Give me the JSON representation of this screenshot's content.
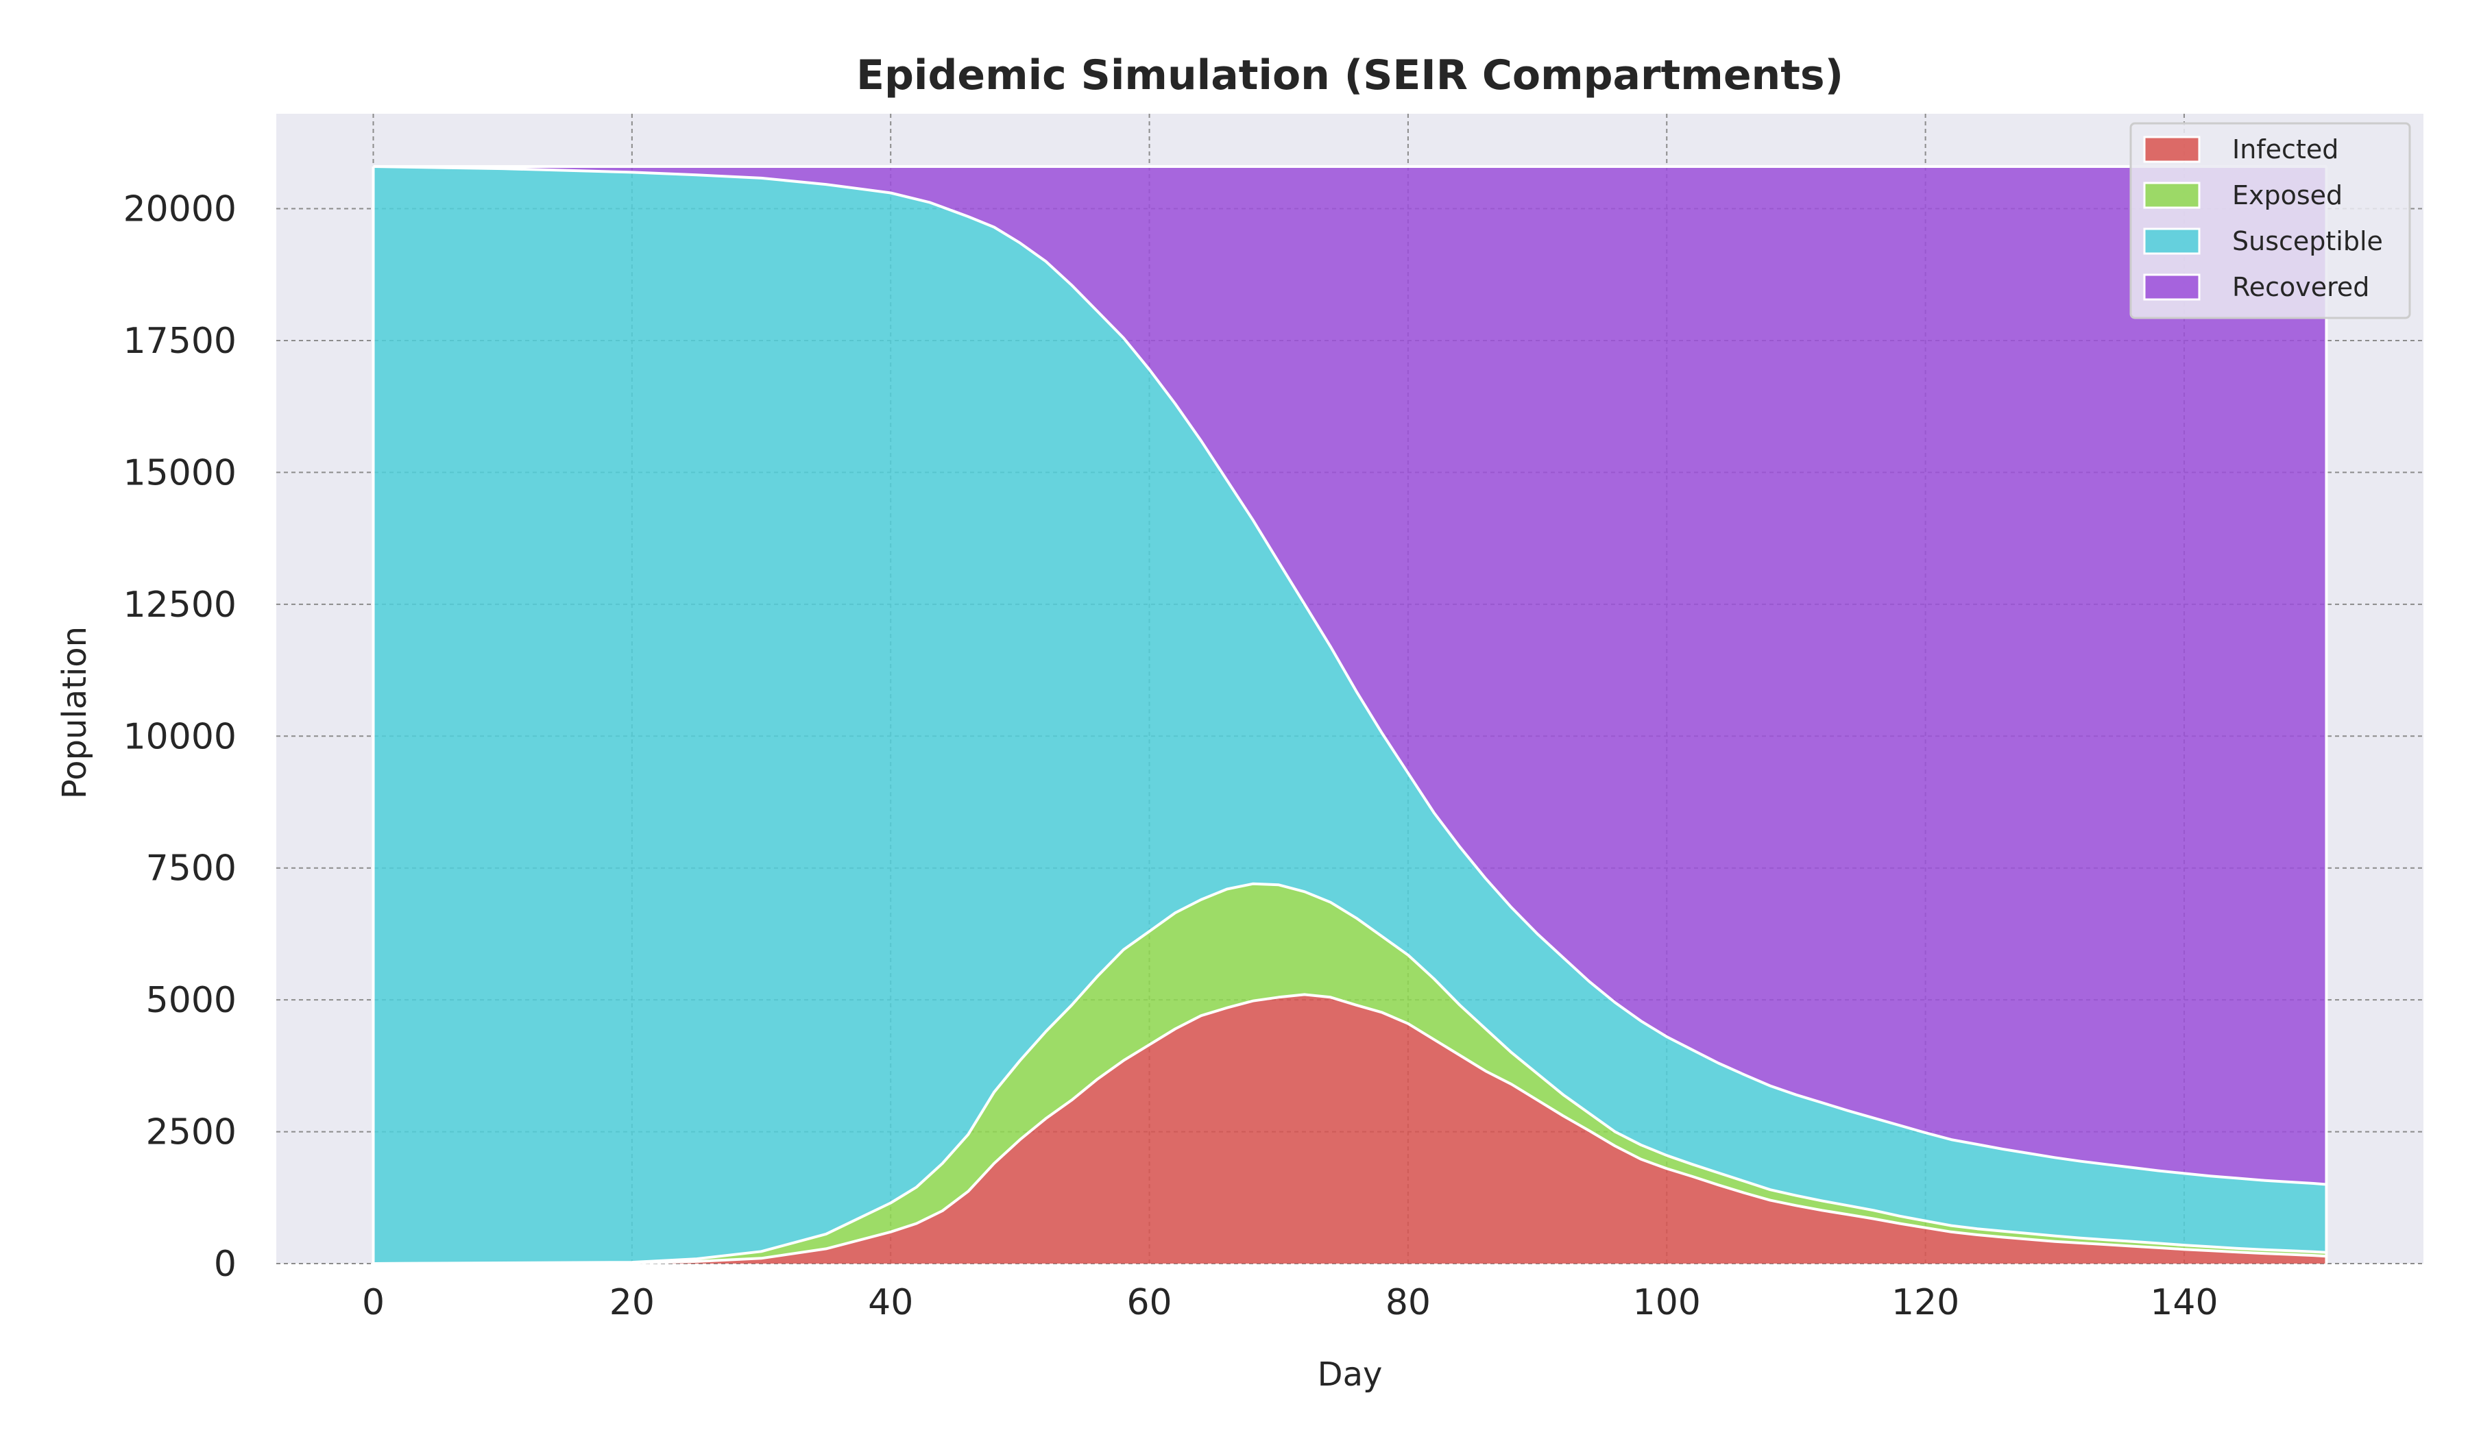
{
  "chart_data": {
    "type": "area",
    "stacked": true,
    "title": "Epidemic Simulation (SEIR Compartments)",
    "xlabel": "Day",
    "ylabel": "Population",
    "xlim": [
      -7.5,
      158.5
    ],
    "ylim": [
      0,
      21800
    ],
    "x_ticks": [
      0,
      20,
      40,
      60,
      80,
      100,
      120,
      140
    ],
    "y_ticks": [
      0,
      2500,
      5000,
      7500,
      10000,
      12500,
      15000,
      17500,
      20000
    ],
    "grid": true,
    "legend_position": "top-right",
    "background_color": "#eaeaf2",
    "series_order": [
      "Infected",
      "Exposed",
      "Susceptible",
      "Recovered"
    ],
    "series": [
      {
        "name": "Infected",
        "color": "#d9534f"
      },
      {
        "name": "Exposed",
        "color": "#8fd94f"
      },
      {
        "name": "Susceptible",
        "color": "#4fcfd9"
      },
      {
        "name": "Recovered",
        "color": "#9b4fd9"
      }
    ],
    "cumulative_boundaries": {
      "infected_top": [
        [
          0,
          0
        ],
        [
          20,
          10
        ],
        [
          25,
          40
        ],
        [
          30,
          100
        ],
        [
          35,
          280
        ],
        [
          40,
          600
        ],
        [
          42,
          760
        ],
        [
          44,
          1000
        ],
        [
          46,
          1370
        ],
        [
          48,
          1900
        ],
        [
          50,
          2350
        ],
        [
          52,
          2750
        ],
        [
          54,
          3100
        ],
        [
          56,
          3500
        ],
        [
          58,
          3850
        ],
        [
          60,
          4150
        ],
        [
          62,
          4450
        ],
        [
          64,
          4700
        ],
        [
          66,
          4850
        ],
        [
          68,
          4980
        ],
        [
          70,
          5050
        ],
        [
          72,
          5100
        ],
        [
          74,
          5050
        ],
        [
          76,
          4900
        ],
        [
          78,
          4760
        ],
        [
          80,
          4550
        ],
        [
          82,
          4250
        ],
        [
          84,
          3950
        ],
        [
          86,
          3650
        ],
        [
          88,
          3400
        ],
        [
          90,
          3100
        ],
        [
          92,
          2800
        ],
        [
          94,
          2520
        ],
        [
          96,
          2230
        ],
        [
          98,
          1980
        ],
        [
          100,
          1800
        ],
        [
          102,
          1650
        ],
        [
          104,
          1490
        ],
        [
          106,
          1340
        ],
        [
          108,
          1200
        ],
        [
          110,
          1100
        ],
        [
          112,
          1010
        ],
        [
          114,
          930
        ],
        [
          116,
          850
        ],
        [
          118,
          760
        ],
        [
          120,
          680
        ],
        [
          122,
          600
        ],
        [
          124,
          545
        ],
        [
          126,
          500
        ],
        [
          128,
          460
        ],
        [
          130,
          420
        ],
        [
          132,
          390
        ],
        [
          134,
          360
        ],
        [
          136,
          330
        ],
        [
          138,
          300
        ],
        [
          140,
          270
        ],
        [
          142,
          245
        ],
        [
          144,
          220
        ],
        [
          146,
          195
        ],
        [
          148,
          175
        ],
        [
          150,
          155
        ],
        [
          151,
          140
        ]
      ],
      "exposed_top": [
        [
          0,
          0
        ],
        [
          20,
          25
        ],
        [
          25,
          90
        ],
        [
          30,
          230
        ],
        [
          35,
          560
        ],
        [
          40,
          1150
        ],
        [
          42,
          1450
        ],
        [
          44,
          1900
        ],
        [
          46,
          2450
        ],
        [
          48,
          3250
        ],
        [
          50,
          3850
        ],
        [
          52,
          4400
        ],
        [
          54,
          4900
        ],
        [
          56,
          5450
        ],
        [
          58,
          5950
        ],
        [
          60,
          6300
        ],
        [
          62,
          6650
        ],
        [
          64,
          6900
        ],
        [
          66,
          7100
        ],
        [
          68,
          7200
        ],
        [
          70,
          7180
        ],
        [
          72,
          7050
        ],
        [
          74,
          6850
        ],
        [
          76,
          6550
        ],
        [
          78,
          6200
        ],
        [
          80,
          5850
        ],
        [
          82,
          5400
        ],
        [
          84,
          4900
        ],
        [
          86,
          4450
        ],
        [
          88,
          4000
        ],
        [
          90,
          3600
        ],
        [
          92,
          3200
        ],
        [
          94,
          2850
        ],
        [
          96,
          2500
        ],
        [
          98,
          2250
        ],
        [
          100,
          2050
        ],
        [
          102,
          1880
        ],
        [
          104,
          1720
        ],
        [
          106,
          1560
        ],
        [
          108,
          1400
        ],
        [
          110,
          1290
        ],
        [
          112,
          1190
        ],
        [
          114,
          1100
        ],
        [
          116,
          1010
        ],
        [
          118,
          900
        ],
        [
          120,
          810
        ],
        [
          122,
          720
        ],
        [
          124,
          660
        ],
        [
          126,
          615
        ],
        [
          128,
          570
        ],
        [
          130,
          525
        ],
        [
          132,
          485
        ],
        [
          134,
          450
        ],
        [
          136,
          420
        ],
        [
          138,
          385
        ],
        [
          140,
          350
        ],
        [
          142,
          320
        ],
        [
          144,
          290
        ],
        [
          146,
          265
        ],
        [
          148,
          245
        ],
        [
          150,
          225
        ],
        [
          151,
          210
        ]
      ],
      "susceptible_top": [
        [
          0,
          20800
        ],
        [
          10,
          20760
        ],
        [
          20,
          20690
        ],
        [
          25,
          20640
        ],
        [
          30,
          20580
        ],
        [
          35,
          20460
        ],
        [
          40,
          20300
        ],
        [
          43,
          20120
        ],
        [
          46,
          19850
        ],
        [
          48,
          19650
        ],
        [
          50,
          19350
        ],
        [
          52,
          19000
        ],
        [
          54,
          18550
        ],
        [
          56,
          18050
        ],
        [
          58,
          17550
        ],
        [
          60,
          16950
        ],
        [
          62,
          16300
        ],
        [
          64,
          15600
        ],
        [
          66,
          14850
        ],
        [
          68,
          14100
        ],
        [
          70,
          13300
        ],
        [
          72,
          12500
        ],
        [
          74,
          11700
        ],
        [
          76,
          10850
        ],
        [
          78,
          10050
        ],
        [
          80,
          9300
        ],
        [
          82,
          8550
        ],
        [
          84,
          7900
        ],
        [
          86,
          7300
        ],
        [
          88,
          6750
        ],
        [
          90,
          6250
        ],
        [
          92,
          5800
        ],
        [
          94,
          5350
        ],
        [
          96,
          4950
        ],
        [
          98,
          4600
        ],
        [
          100,
          4300
        ],
        [
          102,
          4050
        ],
        [
          104,
          3800
        ],
        [
          106,
          3580
        ],
        [
          108,
          3370
        ],
        [
          110,
          3200
        ],
        [
          112,
          3050
        ],
        [
          114,
          2900
        ],
        [
          116,
          2760
        ],
        [
          118,
          2620
        ],
        [
          120,
          2480
        ],
        [
          122,
          2350
        ],
        [
          124,
          2260
        ],
        [
          126,
          2170
        ],
        [
          128,
          2090
        ],
        [
          130,
          2010
        ],
        [
          132,
          1940
        ],
        [
          134,
          1880
        ],
        [
          136,
          1820
        ],
        [
          138,
          1760
        ],
        [
          140,
          1710
        ],
        [
          142,
          1660
        ],
        [
          144,
          1620
        ],
        [
          146,
          1580
        ],
        [
          148,
          1550
        ],
        [
          150,
          1520
        ],
        [
          151,
          1500
        ]
      ],
      "total": 20800,
      "x_max": 151
    }
  }
}
